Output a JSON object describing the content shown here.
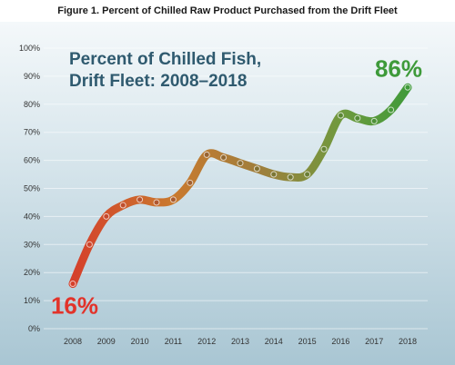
{
  "caption": "Figure 1. Percent of Chilled Raw Product Purchased from the Drift Fleet",
  "chart_data": {
    "type": "line",
    "title_lines": [
      "Percent of Chilled Fish,",
      "Drift Fleet: 2008–2018"
    ],
    "x": [
      2008,
      2008.5,
      2009,
      2009.5,
      2010,
      2010.5,
      2011,
      2011.5,
      2012,
      2012.5,
      2013,
      2013.5,
      2014,
      2014.5,
      2015,
      2015.5,
      2016,
      2016.5,
      2017,
      2017.5,
      2018
    ],
    "y": [
      16,
      30,
      40,
      44,
      46,
      45,
      46,
      52,
      62,
      61,
      59,
      57,
      55,
      54,
      55,
      64,
      76,
      75,
      74,
      78,
      86
    ],
    "xticks": [
      "2008",
      "2009",
      "2010",
      "2011",
      "2012",
      "2013",
      "2014",
      "2015",
      "2016",
      "2017",
      "2018"
    ],
    "yticks": [
      "0%",
      "10%",
      "20%",
      "30%",
      "40%",
      "50%",
      "60%",
      "70%",
      "80%",
      "90%",
      "100%"
    ],
    "xlim": [
      2008,
      2018
    ],
    "ylim": [
      0,
      100
    ],
    "start_label": "16%",
    "end_label": "86%",
    "colors": {
      "start": "#e2332a",
      "end": "#3e9a3a",
      "title": "#2f5a6f",
      "background": "#c9dde6"
    }
  }
}
